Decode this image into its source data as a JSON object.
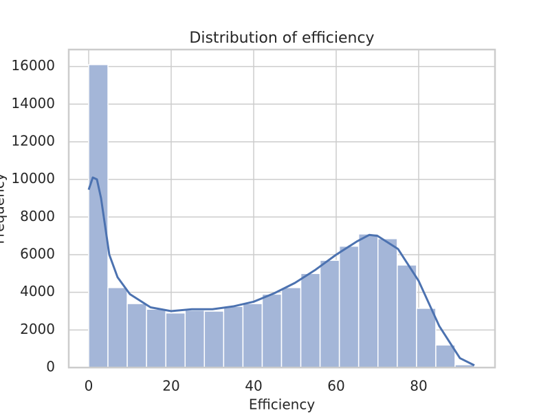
{
  "chart_data": {
    "type": "histogram",
    "title": "Distribution of efficiency",
    "x_label": "Efficiency",
    "y_label": "Frequency",
    "bins": [
      0,
      4.675,
      9.35,
      14.025,
      18.7,
      23.375,
      28.05,
      32.725,
      37.4,
      42.075,
      46.75,
      51.425,
      56.1,
      60.775,
      65.45,
      70.125,
      74.8,
      79.475,
      84.15,
      88.825,
      93.5
    ],
    "values": [
      16100,
      4250,
      3400,
      3100,
      2900,
      3050,
      3000,
      3250,
      3400,
      3900,
      4250,
      5000,
      5700,
      6450,
      7100,
      6850,
      5450,
      3150,
      1200,
      150
    ],
    "color": "#a4b6d8",
    "kde": {
      "color": "#4c72b0",
      "x": [
        0,
        1,
        2,
        3,
        4,
        5,
        7,
        10,
        15,
        20,
        25,
        30,
        35,
        40,
        45,
        50,
        55,
        60,
        65,
        68,
        70,
        75,
        80,
        85,
        90,
        93.5
      ],
      "y": [
        9450,
        10100,
        10000,
        9000,
        7500,
        6000,
        4800,
        3900,
        3200,
        3000,
        3100,
        3100,
        3250,
        3500,
        3950,
        4500,
        5200,
        6000,
        6700,
        7050,
        7000,
        6300,
        4600,
        2200,
        500,
        120
      ]
    },
    "xlim": [
      -4.83,
      98.5
    ],
    "ylim": [
      0,
      16900
    ],
    "xticks": [
      0,
      20,
      40,
      60,
      80
    ],
    "yticks": [
      0,
      2000,
      4000,
      6000,
      8000,
      10000,
      12000,
      14000,
      16000
    ],
    "grid": true
  }
}
